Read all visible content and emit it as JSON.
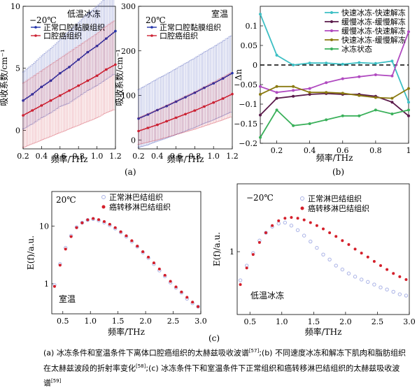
{
  "chart_data": [
    {
      "id": "a1",
      "type": "line",
      "title": "",
      "annotation": "低温冰冻",
      "condition_label": "−20℃",
      "xlabel": "频率/THz",
      "ylabel": "吸收系数/cm⁻¹",
      "xlim": [
        0.2,
        1.2
      ],
      "ylim": [
        -1.5,
        10
      ],
      "xticks": [
        "0.2",
        "0.4",
        "0.6",
        "0.8",
        "1.0",
        "1.2"
      ],
      "yticks": [
        "0",
        "5",
        "10"
      ],
      "ytick_values": [
        0,
        5,
        10
      ],
      "legend_position": "top-left",
      "series": [
        {
          "name": "正常口腔黏膜组织",
          "color": "#2233aa",
          "x": [
            0.2,
            0.3,
            0.4,
            0.5,
            0.6,
            0.7,
            0.8,
            0.9,
            1.0,
            1.1,
            1.2
          ],
          "y": [
            2.4,
            2.9,
            3.5,
            4.0,
            4.6,
            5.1,
            5.7,
            6.3,
            6.8,
            7.4,
            8.0
          ],
          "err": [
            2.3,
            2.4,
            2.5,
            2.6,
            2.7,
            2.9,
            3.0,
            3.1,
            3.2,
            3.3,
            3.4
          ]
        },
        {
          "name": "口腔癌组织",
          "color": "#cc2233",
          "x": [
            0.2,
            0.3,
            0.4,
            0.5,
            0.6,
            0.7,
            0.8,
            0.9,
            1.0,
            1.1,
            1.2
          ],
          "y": [
            1.2,
            1.6,
            2.0,
            2.4,
            2.8,
            3.2,
            3.6,
            4.0,
            4.4,
            4.9,
            5.3
          ],
          "err": [
            2.6,
            2.7,
            2.8,
            2.9,
            3.0,
            3.1,
            3.2,
            3.3,
            3.4,
            3.5,
            3.6
          ]
        }
      ]
    },
    {
      "id": "a2",
      "type": "line",
      "title": "",
      "annotation": "室温",
      "condition_label": "20℃",
      "xlabel": "频率/THz",
      "ylabel": "吸收系数/cm⁻¹",
      "xlim": [
        0.2,
        1.2
      ],
      "ylim": [
        -20,
        300
      ],
      "xticks": [
        "0.2",
        "0.4",
        "0.6",
        "0.8",
        "1.0",
        "1.2"
      ],
      "yticks": [
        "0",
        "100",
        "200",
        "300"
      ],
      "ytick_values": [
        0,
        100,
        200,
        300
      ],
      "legend_position": "top-left",
      "series": [
        {
          "name": "正常口腔黏膜组织",
          "color": "#2233aa",
          "x": [
            0.2,
            0.3,
            0.4,
            0.5,
            0.6,
            0.7,
            0.8,
            0.9,
            1.0,
            1.1,
            1.2
          ],
          "y": [
            48,
            57,
            67,
            76,
            86,
            96,
            106,
            117,
            127,
            138,
            150
          ],
          "err": [
            65,
            68,
            70,
            72,
            74,
            76,
            78,
            80,
            82,
            84,
            86
          ]
        },
        {
          "name": "口腔癌组织",
          "color": "#cc2233",
          "x": [
            0.2,
            0.3,
            0.4,
            0.5,
            0.6,
            0.7,
            0.8,
            0.9,
            1.0,
            1.1,
            1.2
          ],
          "y": [
            20,
            27,
            34,
            42,
            50,
            58,
            66,
            75,
            84,
            93,
            103
          ],
          "err": [
            30,
            32,
            34,
            36,
            38,
            40,
            42,
            44,
            46,
            48,
            50
          ]
        }
      ]
    },
    {
      "id": "b",
      "type": "line",
      "title": "",
      "xlabel": "频率/THz",
      "ylabel": "Δn",
      "xlim": [
        0.1,
        1.0
      ],
      "ylim": [
        -0.2,
        0.15
      ],
      "xticks": [
        "0.2",
        "0.4",
        "0.6",
        "0.8",
        "1"
      ],
      "xtick_values": [
        0.2,
        0.4,
        0.6,
        0.8,
        1.0
      ],
      "yticks": [
        "−0.2",
        "−0.15",
        "−0.1",
        "−0.05",
        "0",
        "0.05",
        "0.1"
      ],
      "ytick_values": [
        -0.2,
        -0.15,
        -0.1,
        -0.05,
        0,
        0.05,
        0.1
      ],
      "zero_line": "dashed",
      "legend_position": "top-right",
      "series": [
        {
          "name": "快速冰冻-快速解冻",
          "color": "#3dbfc4",
          "x": [
            0.1,
            0.2,
            0.3,
            0.4,
            0.5,
            0.6,
            0.7,
            0.8,
            0.9,
            1.0
          ],
          "y": [
            0.13,
            0.025,
            0.0,
            0.005,
            0.005,
            0.002,
            0.006,
            0.004,
            0.01,
            -0.095
          ]
        },
        {
          "name": "缓慢冰冻-缓慢解冻",
          "color": "#5a1a4a",
          "x": [
            0.1,
            0.2,
            0.3,
            0.4,
            0.5,
            0.6,
            0.7,
            0.8,
            0.9,
            1.0
          ],
          "y": [
            -0.128,
            -0.085,
            -0.08,
            -0.075,
            -0.073,
            -0.075,
            -0.075,
            -0.08,
            -0.095,
            -0.13
          ]
        },
        {
          "name": "缓慢冰冻-快速解冻",
          "color": "#b04ac0",
          "x": [
            0.1,
            0.2,
            0.3,
            0.4,
            0.5,
            0.6,
            0.7,
            0.8,
            0.9,
            1.0
          ],
          "y": [
            -0.055,
            -0.07,
            -0.065,
            -0.06,
            -0.045,
            -0.035,
            -0.03,
            -0.025,
            -0.028,
            0.085
          ]
        },
        {
          "name": "快速冰冻-缓慢解冻",
          "color": "#8a7a10",
          "x": [
            0.1,
            0.2,
            0.3,
            0.4,
            0.5,
            0.6,
            0.7,
            0.8,
            0.9,
            1.0
          ],
          "y": [
            -0.075,
            -0.055,
            -0.055,
            -0.07,
            -0.07,
            -0.072,
            -0.078,
            -0.083,
            -0.085,
            -0.06
          ]
        },
        {
          "name": "冰冻状态",
          "color": "#3ab05a",
          "x": [
            0.1,
            0.2,
            0.3,
            0.4,
            0.5,
            0.6,
            0.7,
            0.8,
            0.9,
            1.0
          ],
          "y": [
            -0.185,
            -0.115,
            -0.155,
            -0.15,
            -0.14,
            -0.13,
            -0.13,
            -0.115,
            -0.125,
            -0.115
          ]
        }
      ]
    },
    {
      "id": "c1",
      "type": "scatter",
      "title": "",
      "annotation": "室温",
      "condition_label": "20℃",
      "xlabel": "频率/THz",
      "ylabel": "E(f)/a.u.",
      "xlim": [
        0.3,
        3.0
      ],
      "ylim": [
        0.3,
        40
      ],
      "yscale": "log",
      "xticks": [
        "0.5",
        "1.0",
        "1.5",
        "2.0",
        "2.5",
        "3.0"
      ],
      "xtick_values": [
        0.5,
        1.0,
        1.5,
        2.0,
        2.5,
        3.0
      ],
      "yticks": [
        "1",
        "10"
      ],
      "ytick_values": [
        1,
        10
      ],
      "legend_position": "top-right",
      "series": [
        {
          "name": "正常淋巴结组织",
          "color": "#a9b2e6",
          "marker": "open-circle",
          "x": [
            0.35,
            0.45,
            0.55,
            0.65,
            0.75,
            0.85,
            0.95,
            1.05,
            1.15,
            1.25,
            1.35,
            1.45,
            1.55,
            1.65,
            1.75,
            1.85,
            1.95,
            2.05,
            2.15,
            2.25,
            2.35,
            2.45,
            2.55,
            2.65,
            2.75,
            2.85,
            2.95
          ],
          "y": [
            0.95,
            2.2,
            4.2,
            6.8,
            9.6,
            11.5,
            12.8,
            13.3,
            12.6,
            11.6,
            10.4,
            9.1,
            7.8,
            6.6,
            5.4,
            4.4,
            3.5,
            2.8,
            2.2,
            1.7,
            1.35,
            1.05,
            0.85,
            0.7,
            0.55,
            0.46,
            0.4
          ]
        },
        {
          "name": "癌转移淋巴结组织",
          "color": "#d41f2a",
          "marker": "filled-circle",
          "x": [
            0.35,
            0.45,
            0.55,
            0.65,
            0.75,
            0.85,
            0.95,
            1.05,
            1.15,
            1.25,
            1.35,
            1.45,
            1.55,
            1.65,
            1.75,
            1.85,
            1.95,
            2.05,
            2.15,
            2.25,
            2.35,
            2.45,
            2.55,
            2.65,
            2.75,
            2.85,
            2.95
          ],
          "y": [
            0.9,
            2.1,
            4.0,
            6.6,
            9.4,
            11.4,
            12.9,
            13.6,
            13.0,
            12.0,
            10.8,
            9.4,
            8.0,
            6.8,
            5.6,
            4.5,
            3.6,
            2.9,
            2.3,
            1.8,
            1.4,
            1.1,
            0.88,
            0.72,
            0.58,
            0.48,
            0.4
          ]
        }
      ]
    },
    {
      "id": "c2",
      "type": "scatter",
      "title": "",
      "annotation": "低温冰冻",
      "condition_label": "−20℃",
      "xlabel": "频率/THz",
      "ylabel": "E(f)/a.u.",
      "xlim": [
        0.3,
        3.0
      ],
      "ylim": [
        0.1,
        12
      ],
      "yscale": "log",
      "xticks": [
        "0.5",
        "1.0",
        "1.5",
        "2.0",
        "2.5",
        "3.0"
      ],
      "xtick_values": [
        0.5,
        1.0,
        1.5,
        2.0,
        2.5,
        3.0
      ],
      "yticks": [
        "1"
      ],
      "ytick_values": [
        1
      ],
      "legend_position": "top-right",
      "series": [
        {
          "name": "正常淋巴结组织",
          "color": "#a9b2e6",
          "marker": "open-circle",
          "x": [
            0.35,
            0.45,
            0.55,
            0.65,
            0.75,
            0.85,
            0.95,
            1.05,
            1.15,
            1.25,
            1.35,
            1.45,
            1.55,
            1.65,
            1.75,
            1.85,
            1.95,
            2.05,
            2.15,
            2.25,
            2.35,
            2.45,
            2.55,
            2.65,
            2.75,
            2.85,
            2.95
          ],
          "y": [
            0.35,
            0.6,
            0.95,
            1.5,
            2.0,
            2.5,
            2.8,
            2.9,
            2.6,
            2.2,
            1.8,
            1.45,
            1.15,
            0.9,
            0.75,
            0.6,
            0.52,
            0.45,
            0.4,
            0.36,
            0.33,
            0.3,
            0.27,
            0.25,
            0.23,
            0.21,
            0.2
          ]
        },
        {
          "name": "癌转移淋巴结组织",
          "color": "#d41f2a",
          "marker": "filled-circle",
          "x": [
            0.35,
            0.45,
            0.55,
            0.65,
            0.75,
            0.85,
            0.95,
            1.05,
            1.15,
            1.25,
            1.35,
            1.45,
            1.55,
            1.65,
            1.75,
            1.85,
            1.95,
            2.05,
            2.15,
            2.25,
            2.35,
            2.45,
            2.55,
            2.65,
            2.75,
            2.85,
            2.95
          ],
          "y": [
            0.3,
            0.55,
            0.9,
            1.4,
            2.0,
            2.6,
            3.1,
            3.4,
            3.5,
            3.4,
            3.2,
            2.9,
            2.6,
            2.3,
            2.0,
            1.75,
            1.5,
            1.3,
            1.1,
            0.95,
            0.82,
            0.7,
            0.6,
            0.52,
            0.45,
            0.4,
            0.36
          ]
        }
      ]
    }
  ],
  "panel_tags": {
    "a": "(a)",
    "b": "(b)",
    "c": "(c)"
  },
  "caption": {
    "part1": "(a) 冰冻条件和室温条件下离体口腔癌组织的太赫兹吸收波谱",
    "ref1": "[57]",
    "part2": ";(b) 不同速度冰冻和解冻下肌肉和脂肪组织在太赫兹波段的折射率变化",
    "ref2": "[58]",
    "part3": ";(c) 冰冻条件下和室温条件下正常组织和癌转移淋巴结组织的太赫兹吸收波谱",
    "ref3": "[59]"
  }
}
